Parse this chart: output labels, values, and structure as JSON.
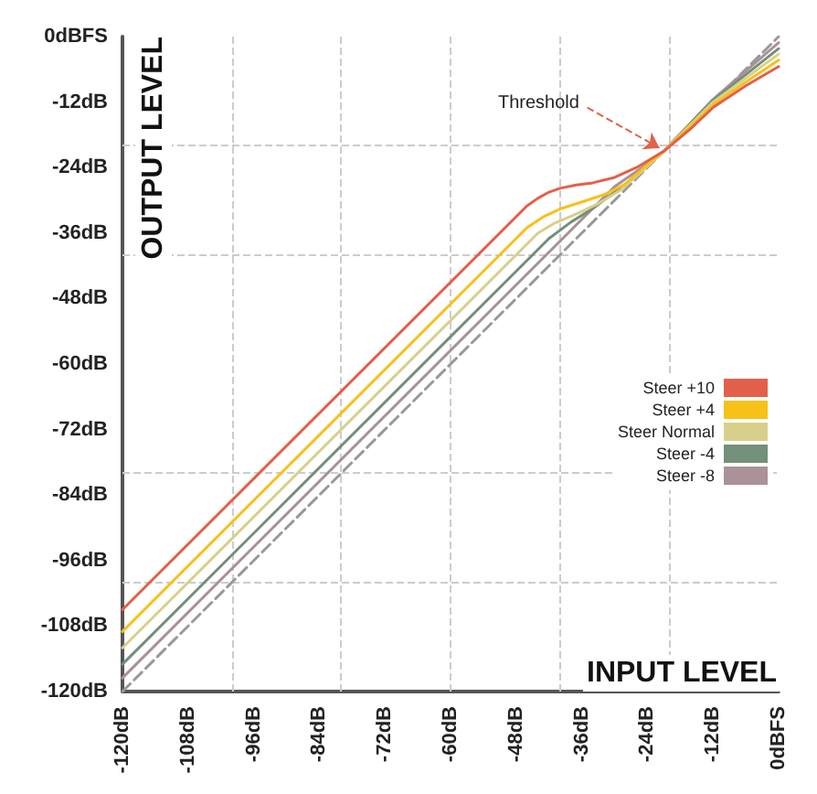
{
  "chart_data": {
    "type": "line",
    "xlabel": "INPUT LEVEL",
    "ylabel": "OUTPUT LEVEL",
    "xlim": [
      -120,
      0
    ],
    "ylim": [
      -120,
      0
    ],
    "xticks": [
      {
        "value": -120,
        "label": "-120dB"
      },
      {
        "value": -108,
        "label": "-108dB"
      },
      {
        "value": -96,
        "label": "-96dB"
      },
      {
        "value": -84,
        "label": "-84dB"
      },
      {
        "value": -72,
        "label": "-72dB"
      },
      {
        "value": -60,
        "label": "-60dB"
      },
      {
        "value": -48,
        "label": "-48dB"
      },
      {
        "value": -36,
        "label": "-36dB"
      },
      {
        "value": -24,
        "label": "-24dB"
      },
      {
        "value": -12,
        "label": "-12dB"
      },
      {
        "value": 0,
        "label": "0dBFS"
      }
    ],
    "yticks": [
      {
        "value": -120,
        "label": "-120dB"
      },
      {
        "value": -108,
        "label": "-108dB"
      },
      {
        "value": -96,
        "label": "-96dB"
      },
      {
        "value": -84,
        "label": "-84dB"
      },
      {
        "value": -72,
        "label": "-72dB"
      },
      {
        "value": -60,
        "label": "-60dB"
      },
      {
        "value": -48,
        "label": "-48dB"
      },
      {
        "value": -36,
        "label": "-36dB"
      },
      {
        "value": -24,
        "label": "-24dB"
      },
      {
        "value": -12,
        "label": "-12dB"
      },
      {
        "value": 0,
        "label": "0dBFS"
      }
    ],
    "grid": false,
    "legend": "right",
    "marker": "none",
    "annotations": [
      {
        "text": "Threshold",
        "x": -21,
        "y": -21
      }
    ],
    "ref_lines": [
      {
        "axis": "x",
        "value": -100,
        "label": null,
        "color": "#cccccc",
        "line_style": "dashed"
      },
      {
        "axis": "x",
        "value": -80,
        "label": null,
        "color": "#cccccc",
        "line_style": "dashed"
      },
      {
        "axis": "x",
        "value": -60,
        "label": null,
        "color": "#cccccc",
        "line_style": "dashed"
      },
      {
        "axis": "x",
        "value": -40,
        "label": null,
        "color": "#cccccc",
        "line_style": "dashed"
      },
      {
        "axis": "x",
        "value": -20,
        "label": null,
        "color": "#cccccc",
        "line_style": "dashed"
      },
      {
        "axis": "y",
        "value": -100,
        "label": null,
        "color": "#cccccc",
        "line_style": "dashed"
      },
      {
        "axis": "y",
        "value": -80,
        "label": null,
        "color": "#cccccc",
        "line_style": "dashed"
      },
      {
        "axis": "y",
        "value": -40,
        "label": null,
        "color": "#cccccc",
        "line_style": "dashed"
      },
      {
        "axis": "y",
        "value": -20,
        "label": null,
        "color": "#cccccc",
        "line_style": "dashed"
      }
    ],
    "series": [
      {
        "name": "Steer +10",
        "color": "#e2604a",
        "x": [
          -120,
          -46,
          -44,
          -42,
          -40,
          -37,
          -34,
          -30,
          -26,
          -21,
          -16,
          -12,
          -6,
          0
        ],
        "values": [
          -105,
          -31,
          -29.6,
          -28.5,
          -27.8,
          -27.2,
          -26.8,
          -25.8,
          -24,
          -21,
          -16.8,
          -13,
          -9,
          -5.5
        ]
      },
      {
        "name": "Steer +4",
        "color": "#f8c11a",
        "x": [
          -120,
          -46,
          -43,
          -40,
          -36,
          -32,
          -28,
          -24,
          -21,
          -12,
          -6,
          0
        ],
        "values": [
          -109,
          -35,
          -33,
          -31.6,
          -30.3,
          -29,
          -27,
          -23.5,
          -21,
          -12.5,
          -8.3,
          -4.3
        ]
      },
      {
        "name": "Steer Normal",
        "color": "#d8d08a",
        "x": [
          -120,
          -44,
          -41,
          -37,
          -33,
          -29,
          -25,
          -21,
          -12,
          -6,
          0
        ],
        "values": [
          -112,
          -36,
          -34.2,
          -32.5,
          -30.6,
          -28.2,
          -24.7,
          -21,
          -12,
          -7.6,
          -3.2
        ]
      },
      {
        "name": "Steer -4",
        "color": "#72907a",
        "x": [
          -120,
          -42,
          -38,
          -34,
          -28,
          -21,
          -12,
          0
        ],
        "values": [
          -115,
          -37,
          -34,
          -31.5,
          -27,
          -21,
          -11.7,
          -2.2
        ]
      },
      {
        "name": "Steer -8",
        "color": "#ab9198",
        "x": [
          -120,
          -30,
          -25,
          -21,
          -12,
          0
        ],
        "values": [
          -117.5,
          -27.5,
          -24,
          -21,
          -11.5,
          -1.1
        ]
      },
      {
        "color": "#999999",
        "line_style": "dashed",
        "x": [
          -120,
          0
        ],
        "values": [
          -120,
          0
        ]
      }
    ]
  }
}
